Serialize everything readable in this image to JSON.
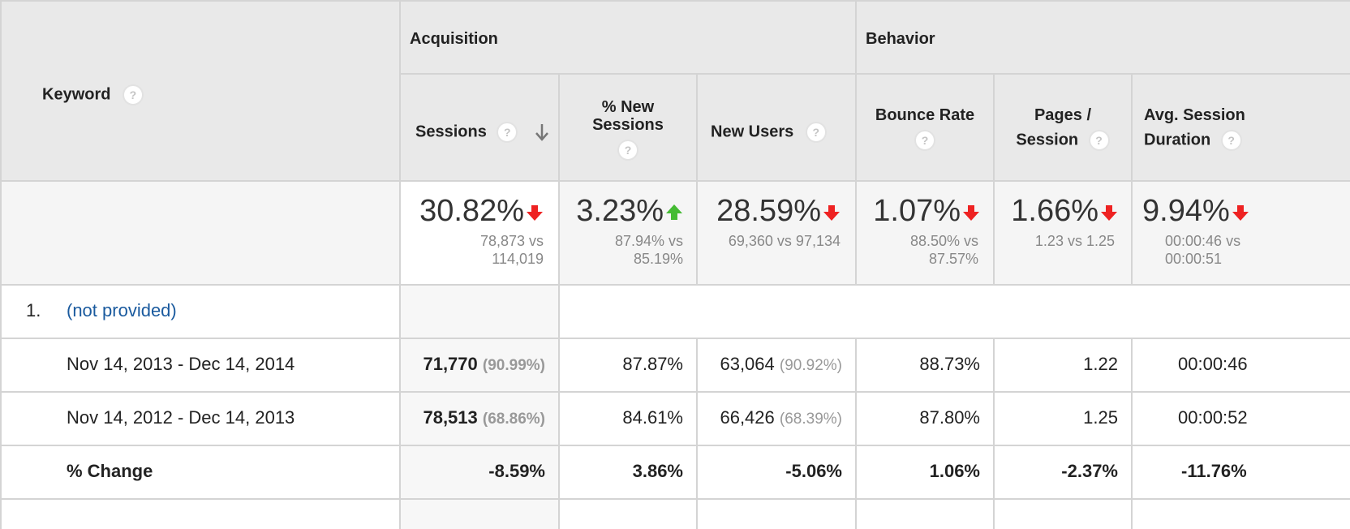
{
  "groups": {
    "acquisition": "Acquisition",
    "behavior": "Behavior"
  },
  "columns": {
    "keyword": "Keyword",
    "sessions": "Sessions",
    "new_sessions_line1": "% New",
    "new_sessions_line2": "Sessions",
    "new_users": "New Users",
    "bounce_rate": "Bounce Rate",
    "pages_line1": "Pages /",
    "pages_line2": "Session",
    "duration_line1": "Avg. Session",
    "duration_line2": "Duration"
  },
  "help_glyph": "?",
  "summary": {
    "sessions": {
      "change": "30.82%",
      "direction": "down",
      "cmp1": "78,873 vs",
      "cmp2": "114,019"
    },
    "new_sessions": {
      "change": "3.23%",
      "direction": "up",
      "cmp1": "87.94% vs",
      "cmp2": "85.19%"
    },
    "new_users": {
      "change": "28.59%",
      "direction": "down",
      "cmp1": "69,360 vs 97,134"
    },
    "bounce_rate": {
      "change": "1.07%",
      "direction": "down",
      "cmp1": "88.50% vs",
      "cmp2": "87.57%"
    },
    "pages": {
      "change": "1.66%",
      "direction": "down",
      "cmp1": "1.23 vs 1.25"
    },
    "duration": {
      "change": "9.94%",
      "direction": "down",
      "cmp1": "00:00:46 vs",
      "cmp2": "00:00:51"
    }
  },
  "keyword_row": {
    "index": "1.",
    "keyword": "(not provided)"
  },
  "rows": [
    {
      "label": "Nov 14, 2013 - Dec 14, 2014",
      "sessions": "71,770",
      "sessions_pct": "(90.99%)",
      "new_sessions": "87.87%",
      "new_users": "63,064",
      "new_users_pct": "(90.92%)",
      "bounce_rate": "88.73%",
      "pages": "1.22",
      "duration": "00:00:46"
    },
    {
      "label": "Nov 14, 2012 - Dec 14, 2013",
      "sessions": "78,513",
      "sessions_pct": "(68.86%)",
      "new_sessions": "84.61%",
      "new_users": "66,426",
      "new_users_pct": "(68.39%)",
      "bounce_rate": "87.80%",
      "pages": "1.25",
      "duration": "00:00:52"
    }
  ],
  "change_row": {
    "label": "% Change",
    "sessions": "-8.59%",
    "new_sessions": "3.86%",
    "new_users": "-5.06%",
    "bounce_rate": "1.06%",
    "pages": "-2.37%",
    "duration": "-11.76%"
  },
  "colors": {
    "down_arrow": "#ee2222",
    "up_arrow": "#44bb33",
    "link": "#1a5a9e",
    "header_bg": "#e9e9e9"
  }
}
